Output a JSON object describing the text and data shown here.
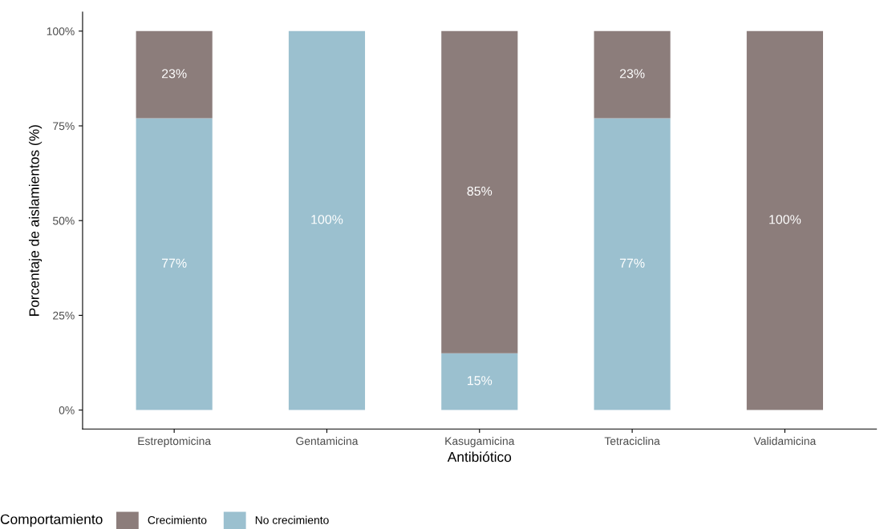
{
  "chart_data": {
    "type": "bar",
    "stacked": true,
    "xlabel": "Antibiótico",
    "ylabel": "Porcentaje de aislamientos (%)",
    "legend_title": "Comportamiento",
    "legend": "bottom",
    "grid": false,
    "categories": [
      "Estreptomicina",
      "Gentamicina",
      "Kasugamicina",
      "Tetraciclina",
      "Validamicina"
    ],
    "series": [
      {
        "name": "No crecimiento",
        "color": "#9bc0cf",
        "values": [
          77,
          100,
          15,
          77,
          0
        ],
        "value_labels": [
          "77%",
          "100%",
          "15%",
          "77%",
          null
        ]
      },
      {
        "name": "Crecimiento",
        "color": "#8c7d7b",
        "values": [
          23,
          0,
          85,
          23,
          100
        ],
        "value_labels": [
          "23%",
          null,
          "85%",
          "23%",
          "100%"
        ]
      }
    ],
    "ylim": [
      -5,
      105
    ],
    "yticks": [
      {
        "value": 0,
        "label": "0%"
      },
      {
        "value": 25,
        "label": "25%"
      },
      {
        "value": 50,
        "label": "50%"
      },
      {
        "value": 75,
        "label": "75%"
      },
      {
        "value": 100,
        "label": "100%"
      }
    ]
  }
}
